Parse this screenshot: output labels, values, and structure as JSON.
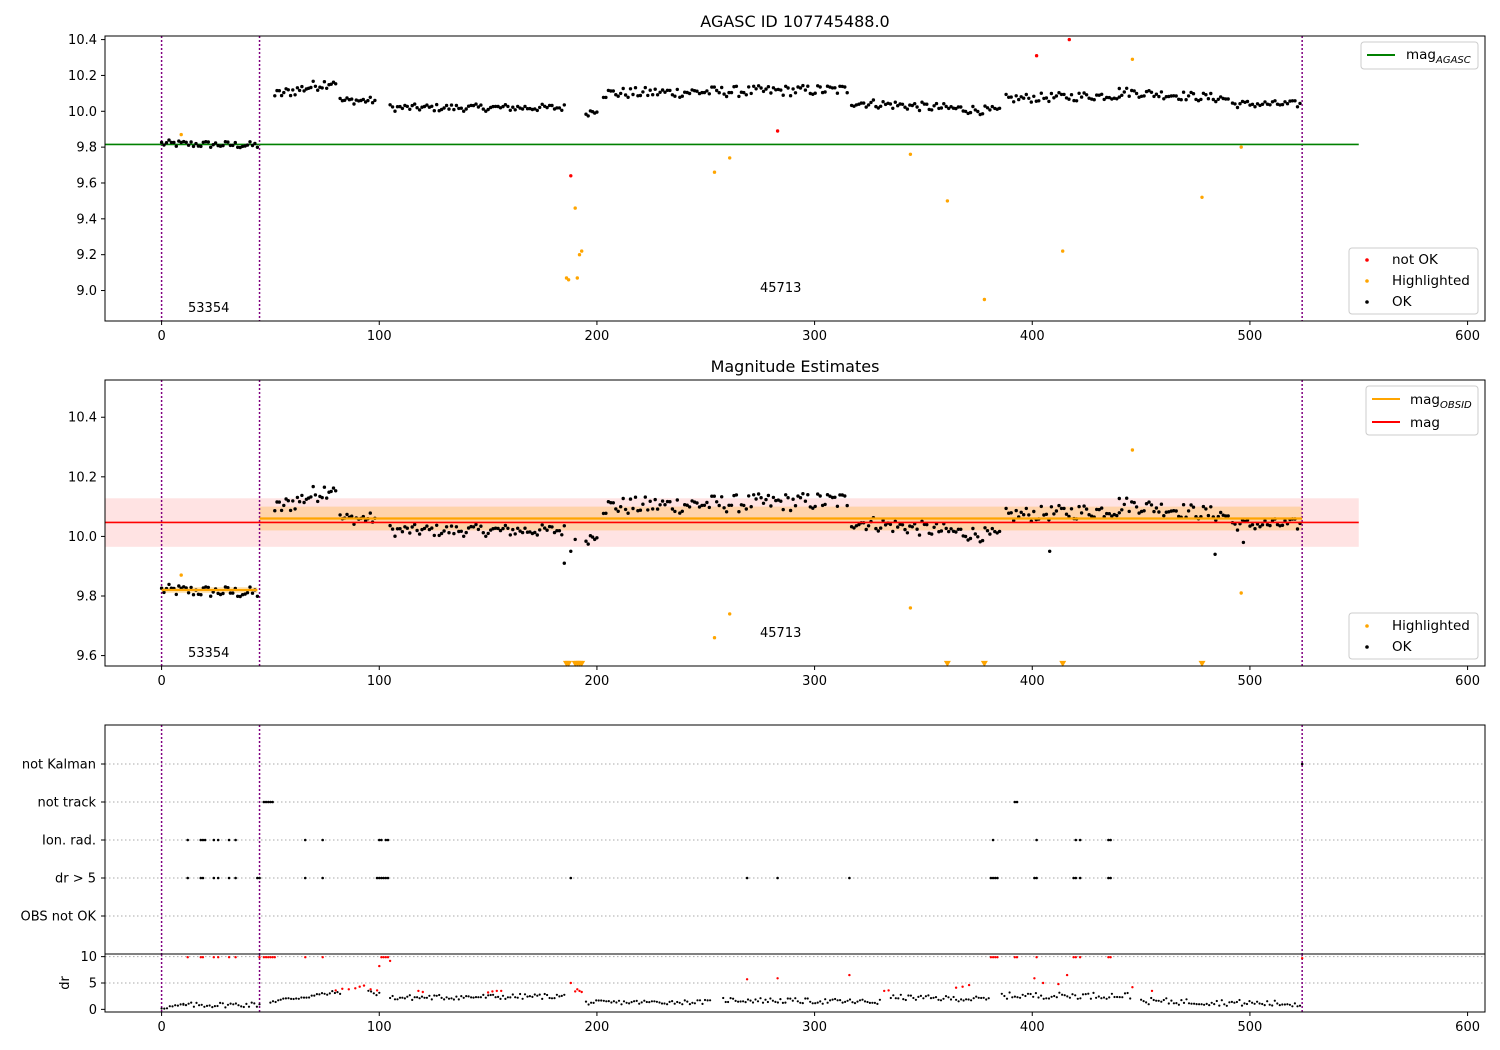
{
  "chart_data": [
    {
      "type": "scatter",
      "title": "AGASC ID 107745488.0",
      "xlim": [
        -26,
        608
      ],
      "ylim": [
        8.83,
        10.42
      ],
      "xticks": [
        0,
        100,
        200,
        300,
        400,
        500,
        600
      ],
      "yticks": [
        "9.0",
        "9.2",
        "9.4",
        "9.6",
        "9.8",
        "10.0",
        "10.2",
        "10.4"
      ],
      "vlines": [
        0,
        45,
        524
      ],
      "hline": {
        "name": "mag_AGASC",
        "value": 9.815,
        "x_range": [
          -26,
          550
        ],
        "color": "#008000"
      },
      "annotations": [
        {
          "text": "53354",
          "x": 22,
          "y": 8.89
        },
        {
          "text": "45713",
          "x": 284,
          "y": 8.99
        }
      ],
      "legends": [
        {
          "placement": "upper-right",
          "entries": [
            {
              "label": "mag",
              "sub": "AGASC",
              "kind": "line",
              "color": "#008000"
            }
          ]
        },
        {
          "placement": "lower-right",
          "entries": [
            {
              "label": "not OK",
              "kind": "dot",
              "color": "#ff0000"
            },
            {
              "label": "Highlighted",
              "kind": "dot",
              "color": "#ffa500"
            },
            {
              "label": "OK",
              "kind": "dot",
              "color": "#000000"
            }
          ]
        }
      ],
      "series": [
        {
          "name": "Highlighted",
          "color": "#ffa500",
          "x": [
            9,
            186,
            187,
            190,
            191,
            192,
            193,
            254,
            261,
            344,
            361,
            378,
            414,
            446,
            478,
            496
          ],
          "y": [
            9.87,
            9.07,
            9.06,
            9.46,
            9.07,
            9.2,
            9.22,
            9.66,
            9.74,
            9.76,
            9.5,
            8.95,
            9.22,
            10.29,
            9.52,
            9.8
          ]
        },
        {
          "name": "not OK",
          "color": "#ff0000",
          "x": [
            188,
            283,
            402,
            417
          ],
          "y": [
            9.64,
            9.89,
            10.31,
            10.4
          ]
        },
        {
          "name": "OK",
          "color": "#000000",
          "segments": [
            {
              "x0": 0,
              "x1": 44,
              "y0": 9.82,
              "y1": 9.81,
              "amp": 0.02,
              "n": 40
            },
            {
              "x0": 52,
              "x1": 80,
              "y0": 10.09,
              "y1": 10.17,
              "amp": 0.03,
              "n": 28
            },
            {
              "x0": 82,
              "x1": 98,
              "y0": 10.06,
              "y1": 10.06,
              "amp": 0.02,
              "n": 16
            },
            {
              "x0": 105,
              "x1": 185,
              "y0": 10.02,
              "y1": 10.02,
              "amp": 0.02,
              "n": 72
            },
            {
              "x0": 195,
              "x1": 200,
              "y0": 9.99,
              "y1": 10.01,
              "amp": 0.02,
              "n": 6
            },
            {
              "x0": 203,
              "x1": 315,
              "y0": 10.1,
              "y1": 10.12,
              "amp": 0.03,
              "n": 100
            },
            {
              "x0": 317,
              "x1": 385,
              "y0": 10.05,
              "y1": 10.0,
              "amp": 0.025,
              "n": 62
            },
            {
              "x0": 388,
              "x1": 440,
              "y0": 10.07,
              "y1": 10.09,
              "amp": 0.025,
              "n": 46
            },
            {
              "x0": 440,
              "x1": 490,
              "y0": 10.11,
              "y1": 10.07,
              "amp": 0.025,
              "n": 45
            },
            {
              "x0": 492,
              "x1": 523,
              "y0": 10.04,
              "y1": 10.04,
              "amp": 0.02,
              "n": 28
            }
          ]
        }
      ]
    },
    {
      "type": "scatter",
      "title": "Magnitude Estimates",
      "xlim": [
        -26,
        608
      ],
      "ylim": [
        9.565,
        10.525
      ],
      "xticks": [
        0,
        100,
        200,
        300,
        400,
        500,
        600
      ],
      "yticks": [
        "9.6",
        "9.8",
        "10.0",
        "10.2",
        "10.4"
      ],
      "vlines": [
        0,
        45,
        524
      ],
      "hline": {
        "name": "mag",
        "value": 10.047,
        "x_range": [
          -26,
          550
        ],
        "color": "#ff0000"
      },
      "band": {
        "low": 9.965,
        "high": 10.128,
        "x_range": [
          -26,
          550
        ],
        "color": "#ffcccc"
      },
      "obsid_mag": [
        {
          "x0": 0,
          "x1": 44,
          "value": 9.82,
          "low": 9.81,
          "high": 9.83
        },
        {
          "x0": 45,
          "x1": 524,
          "value": 10.06,
          "low": 10.02,
          "high": 10.1
        }
      ],
      "annotations": [
        {
          "text": "53354",
          "x": 22,
          "y": 9.6
        },
        {
          "text": "45713",
          "x": 284,
          "y": 9.675
        }
      ],
      "legends": [
        {
          "placement": "upper-right",
          "entries": [
            {
              "label": "mag",
              "sub": "OBSID",
              "kind": "line",
              "color": "#ffa500"
            },
            {
              "label": "mag",
              "kind": "line",
              "color": "#ff0000"
            }
          ]
        },
        {
          "placement": "lower-right",
          "entries": [
            {
              "label": "Highlighted",
              "kind": "dot",
              "color": "#ffa500"
            },
            {
              "label": "OK",
              "kind": "dot",
              "color": "#000000"
            }
          ]
        }
      ],
      "series": [
        {
          "name": "Highlighted",
          "color": "#ffa500",
          "x": [
            9,
            254,
            261,
            344,
            446,
            496
          ],
          "y": [
            9.87,
            9.66,
            9.74,
            9.76,
            10.29,
            9.81
          ]
        },
        {
          "name": "Highlighted (off-scale)",
          "color": "#ffa500",
          "marker": "triangle-down",
          "x": [
            186,
            187,
            190,
            191,
            192,
            193,
            361,
            378,
            414,
            478
          ],
          "y": [
            9.572,
            9.572,
            9.572,
            9.572,
            9.572,
            9.572,
            9.572,
            9.572,
            9.572,
            9.572
          ]
        },
        {
          "name": "OK",
          "color": "#000000",
          "x": [
            185,
            188,
            190,
            408,
            484,
            497
          ],
          "y": [
            9.91,
            9.95,
            9.99,
            9.95,
            9.94,
            9.98
          ]
        }
      ]
    },
    {
      "type": "scatter",
      "title": "",
      "xlim": [
        -26,
        608
      ],
      "categories": [
        "not Kalman",
        "not track",
        "Ion. rad.",
        "dr > 5",
        "OBS not OK"
      ],
      "vlines": [
        0,
        45,
        524
      ],
      "flags": [
        {
          "label": "not Kalman",
          "x": [
            524
          ]
        },
        {
          "label": "not track",
          "x": [
            47,
            48,
            49,
            50,
            51,
            392,
            393
          ]
        },
        {
          "label": "Ion. rad.",
          "x": [
            12,
            18,
            19,
            20,
            24,
            26,
            31,
            34,
            66,
            74,
            100,
            101,
            103,
            104,
            382,
            402,
            420,
            422,
            435,
            436
          ]
        },
        {
          "label": "dr > 5",
          "x": [
            12,
            18,
            19,
            24,
            26,
            31,
            34,
            44,
            45,
            66,
            74,
            99,
            100,
            101,
            102,
            103,
            104,
            188,
            269,
            283,
            316,
            381,
            382,
            383,
            384,
            401,
            402,
            419,
            420,
            422,
            435,
            436
          ]
        },
        {
          "label": "OBS not OK",
          "x": []
        }
      ]
    },
    {
      "type": "scatter",
      "title": "",
      "ylabel": "dr",
      "xlim": [
        -26,
        608
      ],
      "ylim": [
        -0.5,
        10.5
      ],
      "xticks": [
        0,
        100,
        200,
        300,
        400,
        500,
        600
      ],
      "yticks": [
        "0",
        "5",
        "10"
      ],
      "vlines": [
        0,
        45,
        524
      ],
      "hline_value": 10,
      "series": [
        {
          "name": "OK",
          "color": "#000000",
          "segments": [
            {
              "x0": 0,
              "x1": 10,
              "y0": 0.3,
              "y1": 0.8,
              "amp": 0.3,
              "n": 9
            },
            {
              "x0": 10,
              "x1": 45,
              "y0": 0.8,
              "y1": 0.9,
              "amp": 0.5,
              "n": 30
            },
            {
              "x0": 50,
              "x1": 82,
              "y0": 1.5,
              "y1": 3.3,
              "amp": 0.4,
              "n": 28
            },
            {
              "x0": 95,
              "x1": 100,
              "y0": 3.2,
              "y1": 3.0,
              "amp": 0.4,
              "n": 5
            },
            {
              "x0": 105,
              "x1": 185,
              "y0": 2.2,
              "y1": 2.5,
              "amp": 0.5,
              "n": 72
            },
            {
              "x0": 195,
              "x1": 252,
              "y0": 1.3,
              "y1": 1.4,
              "amp": 0.4,
              "n": 50
            },
            {
              "x0": 258,
              "x1": 330,
              "y0": 1.8,
              "y1": 1.4,
              "amp": 0.5,
              "n": 64
            },
            {
              "x0": 335,
              "x1": 380,
              "y0": 2.3,
              "y1": 1.9,
              "amp": 0.5,
              "n": 40
            },
            {
              "x0": 386,
              "x1": 445,
              "y0": 2.6,
              "y1": 2.6,
              "amp": 0.6,
              "n": 50
            },
            {
              "x0": 450,
              "x1": 523,
              "y0": 1.6,
              "y1": 1.0,
              "amp": 0.6,
              "n": 64
            }
          ]
        },
        {
          "name": "dr > 5",
          "color": "#ff0000",
          "x": [
            12,
            18,
            19,
            24,
            26,
            31,
            34,
            45,
            47,
            48,
            49,
            50,
            51,
            52,
            66,
            74,
            80,
            83,
            86,
            89,
            91,
            93,
            96,
            99,
            100,
            101,
            102,
            103,
            104,
            105,
            118,
            120,
            150,
            152,
            154,
            156,
            188,
            190,
            191,
            192,
            193,
            269,
            283,
            316,
            332,
            334,
            365,
            368,
            371,
            381,
            382,
            383,
            384,
            392,
            393,
            401,
            402,
            405,
            412,
            416,
            419,
            420,
            422,
            435,
            436,
            446,
            455,
            524
          ],
          "y": [
            9.9,
            9.9,
            9.9,
            9.9,
            9.9,
            9.9,
            9.9,
            9.9,
            9.9,
            9.9,
            9.9,
            9.9,
            9.9,
            9.9,
            9.9,
            9.9,
            3.6,
            3.9,
            3.8,
            4.0,
            4.3,
            4.5,
            3.8,
            3.6,
            8.2,
            9.9,
            9.9,
            9.9,
            9.9,
            9.2,
            3.5,
            3.3,
            3.2,
            3.4,
            3.5,
            3.5,
            5.0,
            3.4,
            3.8,
            3.5,
            3.3,
            5.7,
            5.9,
            6.5,
            3.5,
            3.6,
            4.1,
            4.3,
            4.6,
            9.9,
            9.9,
            9.9,
            9.9,
            9.9,
            9.9,
            5.9,
            9.9,
            5.0,
            4.8,
            6.5,
            9.9,
            9.9,
            9.9,
            9.9,
            9.9,
            4.2,
            3.5,
            9.7
          ]
        }
      ]
    }
  ]
}
